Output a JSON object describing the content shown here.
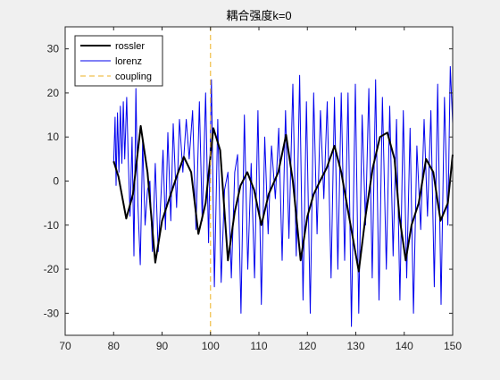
{
  "chart_data": {
    "type": "line",
    "title": "耦合强度k=0",
    "xlabel": "",
    "ylabel": "",
    "xlim": [
      70,
      150
    ],
    "ylim": [
      -35,
      35
    ],
    "xticks": [
      70,
      80,
      90,
      100,
      110,
      120,
      130,
      140,
      150
    ],
    "yticks": [
      -30,
      -20,
      -10,
      0,
      10,
      20,
      30
    ],
    "grid": false,
    "legend_position": "top-left",
    "series": [
      {
        "name": "rossler",
        "color": "#000000",
        "style": "solid",
        "x": [
          80,
          81,
          82.6,
          84,
          85.6,
          87,
          88.6,
          90,
          91.5,
          93,
          94.5,
          96,
          97.5,
          99,
          100.6,
          102,
          103.6,
          105,
          106.2,
          107.6,
          109,
          110.5,
          112,
          114,
          115.6,
          117,
          118.6,
          120,
          121.3,
          122.6,
          124,
          125.6,
          127,
          128.6,
          130.6,
          132,
          133.5,
          135,
          136.5,
          138,
          139,
          140.3,
          141.5,
          143,
          144.5,
          146,
          147.5,
          149,
          150
        ],
        "y": [
          4.5,
          1,
          -8.5,
          -3,
          12.5,
          2,
          -18.5,
          -9,
          -4,
          1,
          5.5,
          2,
          -12,
          -5,
          12,
          7,
          -18,
          -7,
          -1,
          2,
          -2,
          -10,
          -3,
          2,
          10.5,
          0,
          -18,
          -8,
          -3,
          0,
          3,
          8,
          2,
          -8,
          -20.5,
          -8,
          3,
          10,
          11,
          5,
          -8,
          -18,
          -10,
          -5,
          5,
          2,
          -9,
          -5,
          6
        ]
      },
      {
        "name": "lorenz",
        "color": "#0000ee",
        "style": "solid",
        "x": [
          80,
          80.3,
          80.5,
          80.8,
          81.1,
          81.4,
          81.7,
          82,
          82.3,
          82.7,
          83,
          83.4,
          83.8,
          84.2,
          84.6,
          85,
          85.5,
          86,
          86.5,
          87,
          87.5,
          88,
          88.6,
          89.2,
          89.8,
          90.2,
          90.7,
          91.2,
          91.8,
          92.3,
          93,
          93.6,
          94.3,
          95,
          95.6,
          96.3,
          97,
          97.7,
          98.3,
          99,
          99.6,
          100.2,
          100.8,
          101.5,
          102.2,
          102.9,
          103.6,
          104.3,
          105,
          105.6,
          106.3,
          107,
          107.7,
          108.4,
          109.1,
          109.8,
          110.5,
          111.2,
          111.9,
          112.6,
          113.4,
          114.1,
          114.8,
          115.5,
          116.2,
          117,
          117.7,
          118.4,
          119.1,
          119.8,
          120.6,
          121.3,
          122,
          122.7,
          123.4,
          124.1,
          124.9,
          125.6,
          126.3,
          127,
          127.7,
          128.4,
          129.1,
          129.9,
          130.6,
          131.3,
          132,
          132.7,
          133.4,
          134.1,
          134.8,
          135.5,
          136.3,
          137,
          137.7,
          138.4,
          139.1,
          139.8,
          140.5,
          141.2,
          141.9,
          142.6,
          143.4,
          144.1,
          144.8,
          145.5,
          146.2,
          146.9,
          147.6,
          148.3,
          149,
          149.5,
          150
        ],
        "y": [
          4,
          14.5,
          -1,
          15.5,
          2,
          17,
          4,
          18,
          5,
          19,
          6,
          -8,
          10,
          -17,
          21,
          -5,
          -19,
          9,
          -10,
          -2,
          0,
          -16,
          4,
          -16,
          -3,
          7,
          -11,
          11,
          -9,
          13,
          -6,
          14,
          2,
          14,
          5,
          16,
          -11,
          18,
          -9,
          20,
          -14,
          23,
          -24,
          14,
          -23,
          -2,
          2,
          -22,
          2,
          6,
          -30,
          15,
          -20,
          4,
          -22,
          16,
          -28,
          10,
          -12,
          8,
          -4,
          12,
          -18,
          16,
          -13,
          22,
          -17,
          24,
          -27,
          18,
          -30,
          20,
          -12,
          16,
          -4,
          18,
          -22,
          19,
          -20,
          20,
          -18,
          20,
          -33,
          22,
          -30,
          15,
          -10,
          21,
          -22,
          23,
          -27,
          19,
          -20,
          17,
          -17,
          14,
          -27,
          16,
          -22,
          12,
          -30,
          8,
          -11,
          14,
          -8,
          16,
          -24,
          22,
          -28,
          19,
          -10,
          26,
          13
        ]
      },
      {
        "name": "coupling",
        "color": "#edb120",
        "style": "dashed",
        "x": [
          100,
          100
        ],
        "y": [
          -35,
          35
        ]
      }
    ]
  }
}
